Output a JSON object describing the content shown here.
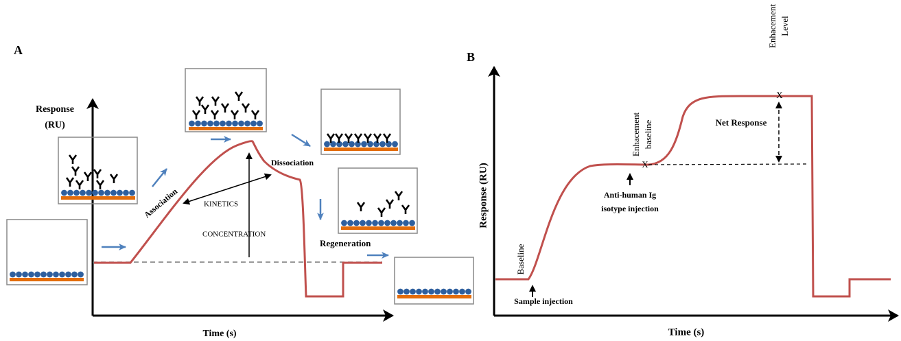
{
  "panel_a": {
    "label": "A",
    "y_axis_label": [
      "Response",
      "(RU)"
    ],
    "x_axis_label": "Time (s)",
    "annotations": {
      "association": "Association",
      "dissociation": "Dissociation",
      "kinetics": "KINETICS",
      "concentration": "CONCENTRATION",
      "regeneration": "Regeneration"
    }
  },
  "panel_b": {
    "label": "B",
    "y_axis_label": "Response (RU)",
    "x_axis_label": "Time (s)",
    "annotations": {
      "baseline": "Baseline",
      "sample_injection": "Sample injection",
      "enhancement_baseline": [
        "Enhacement",
        "baseline"
      ],
      "baseline_marker": "X",
      "anti_human": [
        "Anti-human Ig",
        "isotype injection"
      ],
      "net_response": "Net Response",
      "level_marker": "X",
      "enhancement_level": [
        "Enhacement",
        "Level"
      ]
    }
  }
}
